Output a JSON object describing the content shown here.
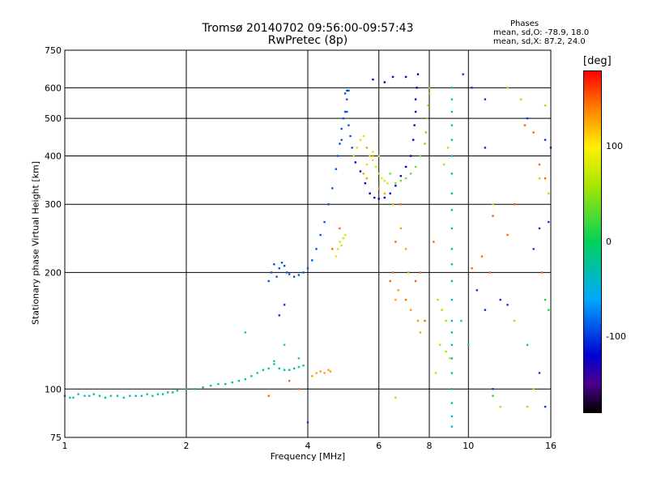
{
  "chart_data": {
    "type": "scatter",
    "title": "Tromsø 20140702 09:56:00-09:57:43",
    "subtitle": "RwPretec (8p)",
    "xlabel": "Frequency [MHz]",
    "ylabel": "Stationary phase Virtual Height [km]",
    "xscale": "log",
    "yscale": "log",
    "xlim": [
      1,
      16
    ],
    "ylim": [
      75,
      750
    ],
    "xticks": [
      "1",
      "2",
      "4",
      "6",
      "8",
      "10",
      "16"
    ],
    "xtick_values": [
      1,
      2,
      4,
      6,
      8,
      10,
      16
    ],
    "yticks": [
      "75",
      "100",
      "200",
      "300",
      "400",
      "500",
      "600",
      "750"
    ],
    "ytick_values": [
      75,
      100,
      200,
      300,
      400,
      500,
      600,
      750
    ],
    "grid_x": [
      2,
      4,
      6,
      8,
      10
    ],
    "grid_y": [
      100,
      200,
      300,
      400,
      500,
      600
    ],
    "grid": true,
    "colorbar": {
      "unit": "[deg]",
      "ticks": [
        "100",
        "0",
        "-100"
      ],
      "tick_values": [
        100,
        0,
        -100
      ],
      "range": [
        -180,
        180
      ]
    },
    "phases": {
      "heading": "Phases",
      "o_line": "mean, sd,O: -78.9, 18.0",
      "x_line": "mean, sd,X:  87.2, 24.0"
    },
    "series": [
      {
        "phase": -30,
        "points": [
          [
            1.0,
            96
          ],
          [
            1.03,
            95
          ],
          [
            1.05,
            95
          ],
          [
            1.08,
            97
          ],
          [
            1.12,
            96
          ],
          [
            1.15,
            96
          ],
          [
            1.18,
            97
          ],
          [
            1.22,
            96
          ],
          [
            1.26,
            95
          ],
          [
            1.3,
            96
          ],
          [
            1.35,
            96
          ],
          [
            1.4,
            95
          ],
          [
            1.45,
            96
          ],
          [
            1.5,
            96
          ],
          [
            1.55,
            96
          ],
          [
            1.6,
            97
          ],
          [
            1.65,
            96
          ],
          [
            1.7,
            97
          ],
          [
            1.75,
            97
          ],
          [
            1.8,
            98
          ],
          [
            1.85,
            98
          ],
          [
            1.9,
            99
          ],
          [
            2.0,
            100
          ],
          [
            2.1,
            100
          ],
          [
            2.2,
            101
          ],
          [
            2.3,
            102
          ],
          [
            2.4,
            103
          ],
          [
            2.5,
            103
          ],
          [
            2.6,
            104
          ],
          [
            2.7,
            105
          ],
          [
            2.8,
            106
          ],
          [
            2.9,
            108
          ],
          [
            3.0,
            110
          ],
          [
            3.1,
            112
          ],
          [
            3.2,
            113
          ],
          [
            3.3,
            116
          ],
          [
            3.4,
            113
          ],
          [
            3.5,
            112
          ],
          [
            3.6,
            112
          ],
          [
            3.7,
            113
          ],
          [
            3.8,
            114
          ],
          [
            3.9,
            115
          ]
        ]
      },
      {
        "phase": -90,
        "points": [
          [
            3.2,
            190
          ],
          [
            3.25,
            200
          ],
          [
            3.3,
            210
          ],
          [
            3.35,
            195
          ],
          [
            3.4,
            205
          ],
          [
            3.45,
            212
          ],
          [
            3.5,
            208
          ],
          [
            3.55,
            200
          ],
          [
            3.6,
            198
          ],
          [
            3.7,
            195
          ],
          [
            3.8,
            197
          ],
          [
            3.9,
            200
          ],
          [
            4.0,
            205
          ],
          [
            4.1,
            215
          ],
          [
            4.2,
            230
          ],
          [
            4.3,
            250
          ],
          [
            4.4,
            270
          ],
          [
            4.5,
            300
          ],
          [
            4.6,
            330
          ],
          [
            4.7,
            370
          ],
          [
            4.75,
            400
          ],
          [
            4.8,
            430
          ],
          [
            4.85,
            470
          ],
          [
            4.9,
            500
          ],
          [
            4.95,
            520
          ],
          [
            5.0,
            560
          ],
          [
            5.0,
            520
          ],
          [
            5.05,
            480
          ],
          [
            5.1,
            450
          ],
          [
            5.15,
            420
          ],
          [
            5.2,
            400
          ],
          [
            4.85,
            440
          ],
          [
            4.95,
            580
          ],
          [
            5.0,
            590
          ],
          [
            5.05,
            590
          ]
        ]
      },
      {
        "phase": -120,
        "points": [
          [
            5.25,
            385
          ],
          [
            5.4,
            365
          ],
          [
            5.55,
            340
          ],
          [
            5.7,
            320
          ],
          [
            5.85,
            312
          ],
          [
            6.0,
            310
          ],
          [
            6.2,
            312
          ],
          [
            6.4,
            320
          ],
          [
            6.6,
            335
          ],
          [
            6.8,
            355
          ],
          [
            7.0,
            375
          ],
          [
            7.2,
            400
          ],
          [
            7.3,
            440
          ],
          [
            7.35,
            480
          ],
          [
            7.4,
            520
          ],
          [
            7.4,
            560
          ],
          [
            7.45,
            600
          ],
          [
            7.5,
            650
          ],
          [
            6.5,
            640
          ],
          [
            6.2,
            620
          ],
          [
            5.8,
            630
          ],
          [
            7.0,
            640
          ]
        ]
      },
      {
        "phase": 80,
        "points": [
          [
            5.2,
            400
          ],
          [
            5.3,
            420
          ],
          [
            5.4,
            440
          ],
          [
            5.5,
            450
          ],
          [
            5.6,
            420
          ],
          [
            5.7,
            400
          ],
          [
            5.8,
            390
          ],
          [
            5.9,
            375
          ],
          [
            6.0,
            360
          ],
          [
            6.1,
            350
          ],
          [
            6.2,
            345
          ],
          [
            6.3,
            340
          ],
          [
            5.6,
            380
          ],
          [
            5.8,
            410
          ],
          [
            6.0,
            400
          ],
          [
            4.7,
            220
          ],
          [
            4.75,
            230
          ],
          [
            4.8,
            240
          ],
          [
            4.85,
            235
          ],
          [
            4.9,
            245
          ],
          [
            4.95,
            250
          ]
        ]
      },
      {
        "phase": 40,
        "points": [
          [
            6.4,
            360
          ],
          [
            6.6,
            340
          ],
          [
            6.8,
            345
          ],
          [
            7.0,
            350
          ],
          [
            7.2,
            360
          ],
          [
            7.4,
            375
          ],
          [
            7.6,
            400
          ],
          [
            7.8,
            430
          ],
          [
            7.85,
            460
          ],
          [
            7.9,
            500
          ],
          [
            7.95,
            540
          ],
          [
            8.0,
            580
          ],
          [
            8.0,
            600
          ]
        ]
      },
      {
        "phase": 130,
        "points": [
          [
            4.1,
            108
          ],
          [
            4.2,
            110
          ],
          [
            4.3,
            111
          ],
          [
            4.4,
            110
          ],
          [
            4.5,
            112
          ],
          [
            4.55,
            111
          ],
          [
            5.5,
            360
          ],
          [
            5.6,
            350
          ],
          [
            6.0,
            330
          ],
          [
            6.2,
            320
          ],
          [
            6.5,
            300
          ],
          [
            6.8,
            260
          ],
          [
            7.0,
            230
          ],
          [
            7.1,
            200
          ],
          [
            6.7,
            180
          ],
          [
            6.6,
            170
          ],
          [
            7.2,
            160
          ],
          [
            7.5,
            150
          ],
          [
            7.6,
            140
          ],
          [
            5.8,
            400
          ],
          [
            5.6,
            420
          ]
        ]
      },
      {
        "phase": -40,
        "points": [
          [
            9.1,
            600
          ],
          [
            9.1,
            560
          ],
          [
            9.1,
            520
          ],
          [
            9.1,
            480
          ],
          [
            9.1,
            440
          ],
          [
            9.1,
            400
          ],
          [
            9.1,
            360
          ],
          [
            9.1,
            320
          ],
          [
            9.1,
            290
          ],
          [
            9.1,
            260
          ],
          [
            9.1,
            230
          ],
          [
            9.1,
            210
          ],
          [
            9.1,
            190
          ],
          [
            9.1,
            170
          ],
          [
            9.1,
            150
          ],
          [
            9.1,
            140
          ],
          [
            9.1,
            130
          ],
          [
            9.1,
            120
          ],
          [
            9.1,
            110
          ],
          [
            9.1,
            100
          ],
          [
            9.1,
            92
          ],
          [
            9.1,
            85
          ],
          [
            9.1,
            80
          ]
        ]
      },
      {
        "phase": 60,
        "points": [
          [
            8.4,
            170
          ],
          [
            8.6,
            160
          ],
          [
            8.8,
            150
          ],
          [
            8.5,
            130
          ],
          [
            8.8,
            125
          ],
          [
            9.0,
            120
          ],
          [
            8.3,
            110
          ],
          [
            6.6,
            95
          ],
          [
            12.5,
            600
          ],
          [
            13.5,
            560
          ],
          [
            15.5,
            540
          ],
          [
            15.0,
            350
          ],
          [
            15.8,
            320
          ],
          [
            14.0,
            90
          ],
          [
            14.5,
            100
          ],
          [
            13.0,
            150
          ],
          [
            11.5,
            300
          ],
          [
            12.0,
            90
          ],
          [
            8.7,
            380
          ],
          [
            8.9,
            420
          ]
        ]
      },
      {
        "phase": -100,
        "points": [
          [
            11.0,
            560
          ],
          [
            11.0,
            420
          ],
          [
            10.5,
            180
          ],
          [
            11.0,
            160
          ],
          [
            12.0,
            170
          ],
          [
            12.5,
            165
          ],
          [
            14.5,
            230
          ],
          [
            15.0,
            260
          ],
          [
            15.8,
            270
          ],
          [
            15.5,
            440
          ],
          [
            16.0,
            420
          ],
          [
            14.0,
            500
          ],
          [
            15.0,
            110
          ],
          [
            11.5,
            100
          ],
          [
            15.5,
            90
          ],
          [
            9.7,
            650
          ],
          [
            10.2,
            600
          ],
          [
            4.0,
            82
          ],
          [
            3.5,
            165
          ],
          [
            3.4,
            155
          ]
        ]
      },
      {
        "phase": 150,
        "points": [
          [
            7.6,
            200
          ],
          [
            7.4,
            190
          ],
          [
            7.0,
            170
          ],
          [
            7.8,
            150
          ],
          [
            8.2,
            240
          ],
          [
            6.8,
            300
          ],
          [
            6.5,
            200
          ],
          [
            6.4,
            190
          ],
          [
            10.2,
            205
          ],
          [
            10.8,
            220
          ],
          [
            11.3,
            200
          ],
          [
            11.5,
            280
          ],
          [
            12.5,
            250
          ],
          [
            13.0,
            300
          ],
          [
            15.0,
            380
          ],
          [
            15.5,
            350
          ],
          [
            14.5,
            460
          ],
          [
            13.8,
            480
          ],
          [
            15.2,
            200
          ],
          [
            6.6,
            240
          ],
          [
            3.6,
            105
          ],
          [
            3.8,
            100
          ],
          [
            3.2,
            96
          ],
          [
            4.6,
            230
          ],
          [
            4.8,
            260
          ]
        ]
      },
      {
        "phase": 10,
        "points": [
          [
            2.8,
            140
          ],
          [
            3.3,
            118
          ],
          [
            3.5,
            130
          ],
          [
            3.8,
            120
          ],
          [
            9.6,
            150
          ],
          [
            10.0,
            130
          ],
          [
            11.5,
            96
          ],
          [
            14.0,
            130
          ],
          [
            15.5,
            170
          ],
          [
            15.8,
            160
          ]
        ]
      }
    ]
  }
}
